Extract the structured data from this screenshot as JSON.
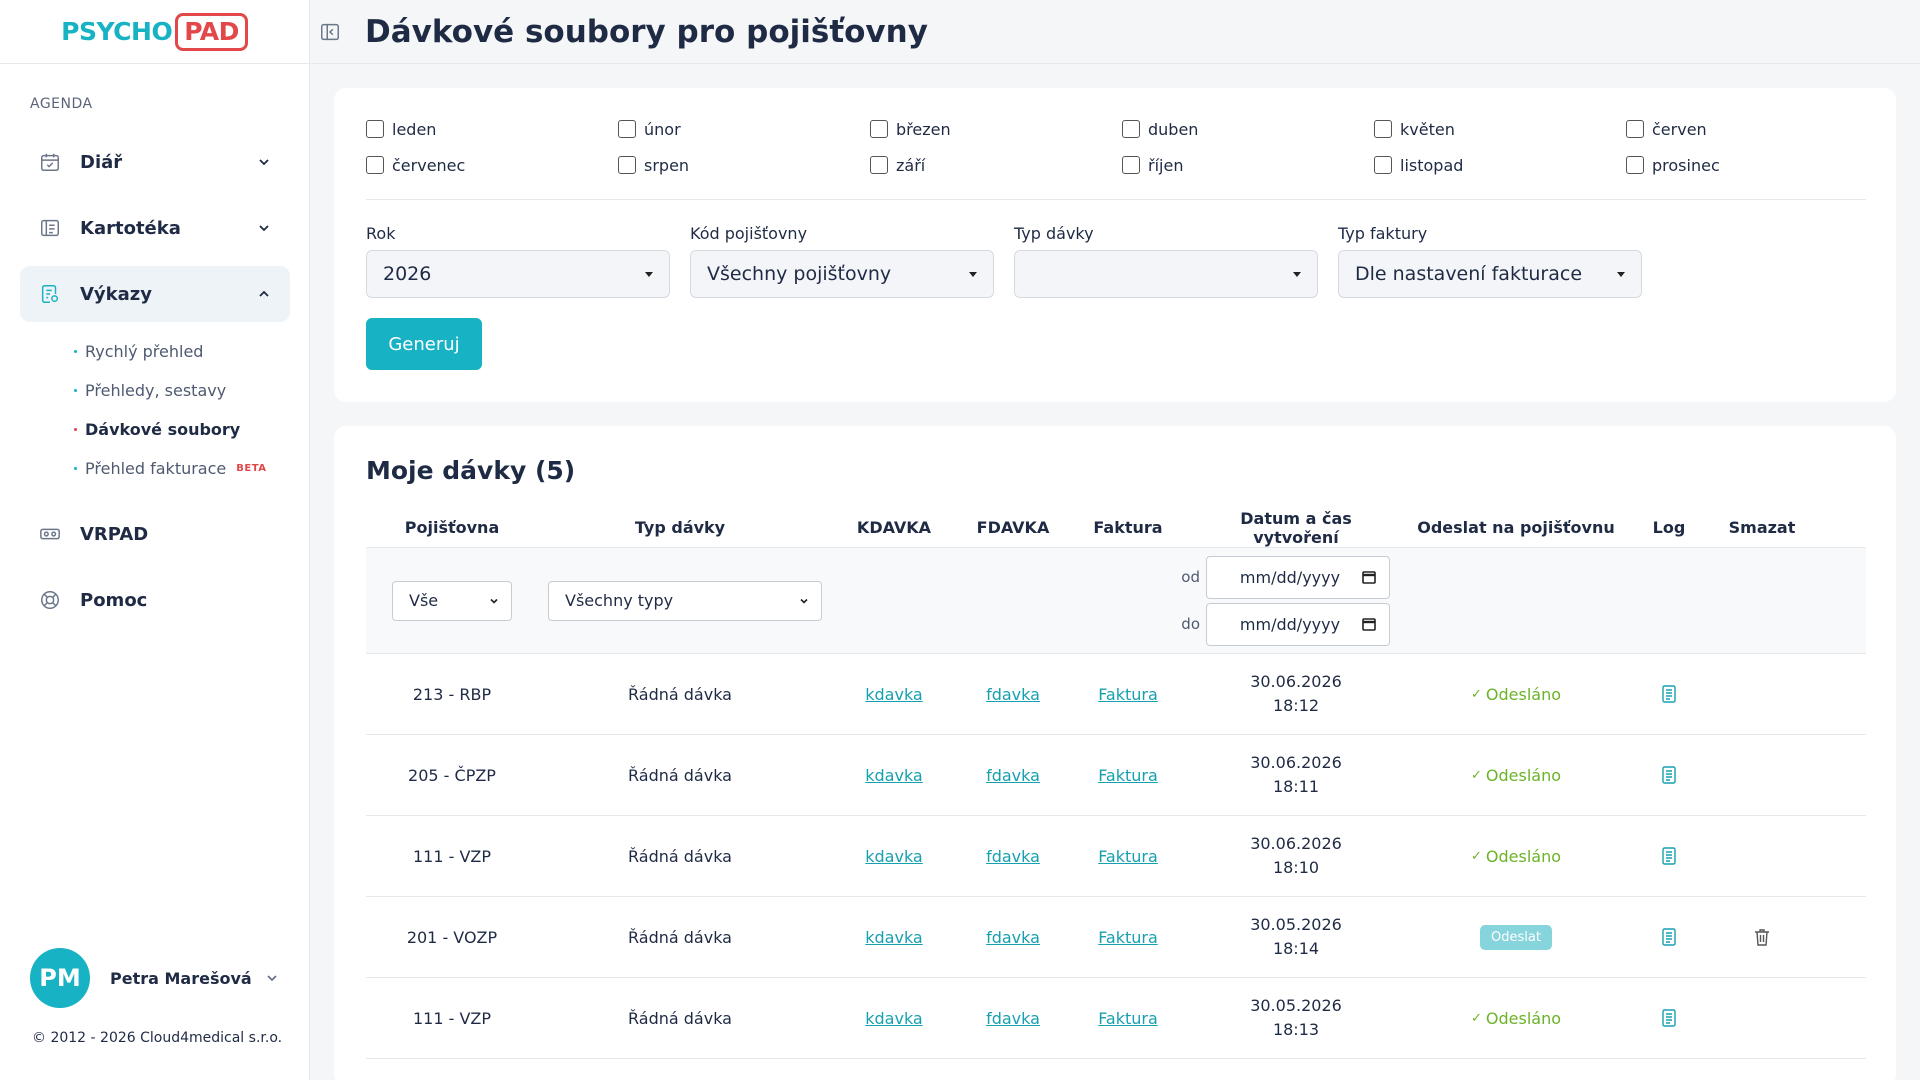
{
  "app": {
    "logo_part1": "PSYCHO",
    "logo_part2": "PAD",
    "accent": "#17b2c3",
    "brand_red": "#e2474a"
  },
  "sidebar": {
    "section": "AGENDA",
    "items": [
      {
        "label": "Diář",
        "icon": "calendar-icon"
      },
      {
        "label": "Kartotéka",
        "icon": "card-file-icon"
      },
      {
        "label": "Výkazy",
        "icon": "report-icon"
      },
      {
        "label": "VRPAD",
        "icon": "vr-headset-icon"
      },
      {
        "label": "Pomoc",
        "icon": "lifebuoy-icon"
      }
    ],
    "subitems": [
      {
        "label": "Rychlý přehled"
      },
      {
        "label": "Přehledy, sestavy"
      },
      {
        "label": "Dávkové soubory"
      },
      {
        "label": "Přehled fakturace",
        "badge": "BETA"
      }
    ],
    "user": {
      "initials": "PM",
      "name": "Petra Marešová"
    },
    "copyright": "© 2012 - 2026 Cloud4medical s.r.o."
  },
  "header": {
    "title": "Dávkové soubory pro pojišťovny"
  },
  "months": [
    "leden",
    "únor",
    "březen",
    "duben",
    "květen",
    "červen",
    "červenec",
    "srpen",
    "září",
    "říjen",
    "listopad",
    "prosinec"
  ],
  "filters": {
    "year": {
      "label": "Rok",
      "value": "2026"
    },
    "insurer": {
      "label": "Kód pojišťovny",
      "value": "Všechny pojišťovny"
    },
    "batch_type": {
      "label": "Typ dávky",
      "value": ""
    },
    "invoice_type": {
      "label": "Typ faktury",
      "value": "Dle nastavení fakturace"
    },
    "generate": "Generuj"
  },
  "batches": {
    "title": "Moje dávky (5)",
    "columns": [
      "Pojišťovna",
      "Typ dávky",
      "KDAVKA",
      "FDAVKA",
      "Faktura",
      "Datum a čas vytvoření",
      "Odeslat na pojišťovnu",
      "Log",
      "Smazat"
    ],
    "filter_row": {
      "insurer": "Vše",
      "type": "Všechny typy",
      "from_label": "od",
      "to_label": "do",
      "from_placeholder": "mm/dd/yyyy",
      "to_placeholder": "mm/dd/yyyy"
    },
    "rows": [
      {
        "insurer": "213 - RBP",
        "type": "Řádná dávka",
        "kdavka": "kdavka",
        "fdavka": "fdavka",
        "invoice": "Faktura",
        "date": "30.06.2026",
        "time": "18:12",
        "status": "Odesláno",
        "sent": true,
        "deletable": false
      },
      {
        "insurer": "205 - ČPZP",
        "type": "Řádná dávka",
        "kdavka": "kdavka",
        "fdavka": "fdavka",
        "invoice": "Faktura",
        "date": "30.06.2026",
        "time": "18:11",
        "status": "Odesláno",
        "sent": true,
        "deletable": false
      },
      {
        "insurer": "111 - VZP",
        "type": "Řádná dávka",
        "kdavka": "kdavka",
        "fdavka": "fdavka",
        "invoice": "Faktura",
        "date": "30.06.2026",
        "time": "18:10",
        "status": "Odesláno",
        "sent": true,
        "deletable": false
      },
      {
        "insurer": "201 - VOZP",
        "type": "Řádná dávka",
        "kdavka": "kdavka",
        "fdavka": "fdavka",
        "invoice": "Faktura",
        "date": "30.05.2026",
        "time": "18:14",
        "status": "Odeslat",
        "sent": false,
        "deletable": true
      },
      {
        "insurer": "111 - VZP",
        "type": "Řádná dávka",
        "kdavka": "kdavka",
        "fdavka": "fdavka",
        "invoice": "Faktura",
        "date": "30.05.2026",
        "time": "18:13",
        "status": "Odesláno",
        "sent": true,
        "deletable": false
      }
    ]
  }
}
